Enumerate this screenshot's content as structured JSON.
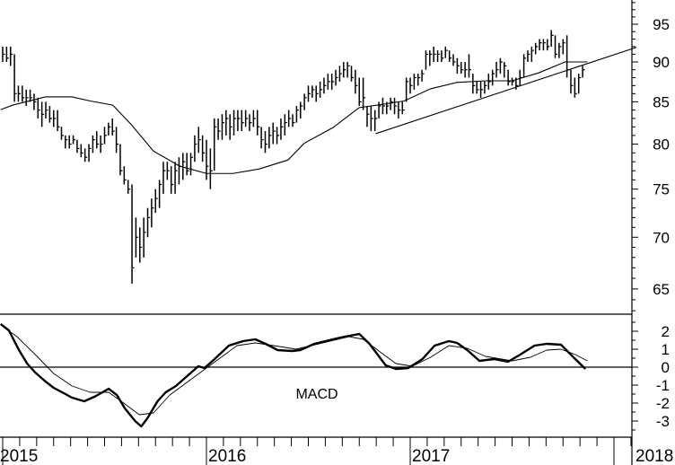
{
  "chart_data": [
    {
      "type": "ohlc",
      "price_axis": {
        "scale": "log",
        "ticks": [
          65,
          70,
          75,
          80,
          85,
          90,
          95
        ],
        "range": [
          62.7,
          98.4
        ],
        "position": "right"
      },
      "x_axis": {
        "type": "date",
        "range": [
          2014.99,
          2018.09
        ],
        "year_labels": [
          "2015",
          "2016",
          "2017",
          "2018"
        ]
      },
      "bar_interval": "weekly",
      "first_bar_year": 2015.0,
      "bars_hlc": [
        [
          92,
          90,
          91
        ],
        [
          92,
          90,
          90.5
        ],
        [
          92,
          89.5,
          91
        ],
        [
          91,
          85,
          86
        ],
        [
          87,
          85,
          86
        ],
        [
          87,
          85,
          85.5
        ],
        [
          86.5,
          84.5,
          85.5
        ],
        [
          86.5,
          85,
          85.5
        ],
        [
          86,
          84,
          85
        ],
        [
          85.5,
          83,
          84
        ],
        [
          85,
          82,
          83.5
        ],
        [
          85,
          83,
          84
        ],
        [
          84.5,
          82.5,
          83
        ],
        [
          84,
          82,
          83
        ],
        [
          84,
          81.5,
          82
        ],
        [
          82,
          80.5,
          81
        ],
        [
          81,
          79.5,
          80.5
        ],
        [
          81,
          79.5,
          80
        ],
        [
          81,
          80,
          80.5
        ],
        [
          80.5,
          79,
          79.5
        ],
        [
          80,
          78.5,
          79
        ],
        [
          79.5,
          78,
          78.5
        ],
        [
          80,
          78,
          79.5
        ],
        [
          81,
          79,
          80.5
        ],
        [
          81.5,
          79.5,
          80
        ],
        [
          81,
          79,
          80
        ],
        [
          82,
          80,
          81
        ],
        [
          82.5,
          81,
          82
        ],
        [
          83,
          81,
          81.5
        ],
        [
          82,
          79,
          80
        ],
        [
          80,
          76.5,
          77
        ],
        [
          77.5,
          75.5,
          76
        ],
        [
          76,
          74.5,
          75
        ],
        [
          75.5,
          65.5,
          67
        ],
        [
          72,
          68,
          70
        ],
        [
          71,
          67.5,
          69
        ],
        [
          72,
          68,
          70.5
        ],
        [
          73,
          70,
          72
        ],
        [
          74,
          71,
          73
        ],
        [
          75,
          72.5,
          74
        ],
        [
          76,
          73,
          75.5
        ],
        [
          78,
          74.5,
          77
        ],
        [
          78,
          76,
          77
        ],
        [
          77.5,
          74.5,
          75.5
        ],
        [
          78,
          74.5,
          77
        ],
        [
          78.5,
          75.5,
          77.5
        ],
        [
          79,
          76,
          78
        ],
        [
          79,
          76.5,
          77
        ],
        [
          79,
          76.5,
          78.5
        ],
        [
          81,
          78,
          80
        ],
        [
          82,
          79,
          80.5
        ],
        [
          81,
          78,
          79
        ],
        [
          80.5,
          76,
          77.5
        ],
        [
          79.5,
          75,
          77
        ],
        [
          83,
          77,
          82
        ],
        [
          83,
          80.5,
          81.5
        ],
        [
          83.5,
          80.5,
          82.5
        ],
        [
          84,
          81,
          83
        ],
        [
          83.5,
          80.5,
          82
        ],
        [
          84,
          81,
          83
        ],
        [
          84,
          81.5,
          83
        ],
        [
          84,
          81.5,
          82.5
        ],
        [
          84,
          82,
          83
        ],
        [
          83.5,
          81.5,
          82.5
        ],
        [
          84,
          82,
          83
        ],
        [
          84,
          81,
          82
        ],
        [
          82,
          79.5,
          80.5
        ],
        [
          81.5,
          79,
          80
        ],
        [
          82,
          79.5,
          81
        ],
        [
          82.5,
          80,
          81.5
        ],
        [
          82,
          80,
          81
        ],
        [
          83,
          80.5,
          82
        ],
        [
          83.5,
          81,
          82.5
        ],
        [
          84,
          82,
          83
        ],
        [
          83.5,
          82,
          82.5
        ],
        [
          84.5,
          82.5,
          84
        ],
        [
          85,
          83,
          84.5
        ],
        [
          86,
          84,
          85.5
        ],
        [
          87,
          85,
          86
        ],
        [
          87,
          85.5,
          86.5
        ],
        [
          87,
          85,
          86
        ],
        [
          87.5,
          85.5,
          86.5
        ],
        [
          88,
          86,
          87
        ],
        [
          88.5,
          86.5,
          87.5
        ],
        [
          88.5,
          86.5,
          87.5
        ],
        [
          89,
          87,
          88
        ],
        [
          89.5,
          87.5,
          88.5
        ],
        [
          90,
          88,
          89
        ],
        [
          90,
          88,
          89.5
        ],
        [
          89.5,
          87.5,
          88
        ],
        [
          89,
          86,
          87
        ],
        [
          88,
          84.5,
          85
        ],
        [
          88,
          84,
          85.5
        ],
        [
          84.5,
          82,
          83.5
        ],
        [
          84.5,
          81.5,
          83
        ],
        [
          84,
          81.5,
          83
        ],
        [
          85,
          83,
          84.5
        ],
        [
          85.5,
          83.5,
          84.5
        ],
        [
          85,
          83.5,
          84.5
        ],
        [
          85.5,
          84,
          85
        ],
        [
          85.5,
          83.5,
          84.5
        ],
        [
          85,
          83,
          84
        ],
        [
          85,
          83.5,
          84
        ],
        [
          88,
          85,
          87.5
        ],
        [
          88,
          86,
          87
        ],
        [
          88.5,
          86.5,
          88
        ],
        [
          88.5,
          87,
          88
        ],
        [
          89,
          87.5,
          88.5
        ],
        [
          91.5,
          89,
          91
        ],
        [
          91.5,
          89.5,
          91
        ],
        [
          92,
          90,
          91
        ],
        [
          91.5,
          90,
          91
        ],
        [
          91.5,
          90,
          90.5
        ],
        [
          92,
          90.5,
          91.5
        ],
        [
          91.5,
          90,
          90.5
        ],
        [
          91,
          89.5,
          90
        ],
        [
          90.5,
          88.5,
          89.5
        ],
        [
          90,
          88.5,
          89
        ],
        [
          90,
          88,
          89
        ],
        [
          91,
          88,
          89
        ],
        [
          88.5,
          86,
          87
        ],
        [
          87.5,
          86,
          86.5
        ],
        [
          87.5,
          85.5,
          86.5
        ],
        [
          87.5,
          86,
          87
        ],
        [
          88.5,
          86.5,
          87.5
        ],
        [
          89,
          87,
          88.5
        ],
        [
          90,
          88,
          89
        ],
        [
          90.5,
          88.5,
          90
        ],
        [
          90,
          88,
          89.5
        ],
        [
          89,
          87,
          87.5
        ],
        [
          88,
          87,
          87.5
        ],
        [
          88,
          86.5,
          87
        ],
        [
          89,
          87,
          88
        ],
        [
          91,
          88,
          90.5
        ],
        [
          91.5,
          90,
          91
        ],
        [
          92,
          90,
          91.5
        ],
        [
          92.5,
          91,
          92
        ],
        [
          93,
          91.5,
          92.5
        ],
        [
          93,
          91.5,
          92.5
        ],
        [
          93,
          91.5,
          92
        ],
        [
          94.2,
          92,
          93.5
        ],
        [
          93.5,
          90.5,
          91
        ],
        [
          92.5,
          90.5,
          92
        ],
        [
          93,
          91,
          92.5
        ],
        [
          93.5,
          88,
          89
        ],
        [
          89,
          86,
          87
        ],
        [
          88,
          85.5,
          86
        ],
        [
          88.5,
          86,
          88
        ],
        [
          89.5,
          88,
          89
        ]
      ],
      "moving_average": [
        [
          2014.99,
          84.05
        ],
        [
          2015.05,
          84.6
        ],
        [
          2015.21,
          85.6
        ],
        [
          2015.34,
          85.6
        ],
        [
          2015.43,
          85.1
        ],
        [
          2015.54,
          84.6
        ],
        [
          2015.63,
          82.3
        ],
        [
          2015.74,
          79.2
        ],
        [
          2015.87,
          77.5
        ],
        [
          2016.0,
          76.7
        ],
        [
          2016.13,
          76.7
        ],
        [
          2016.26,
          77.2
        ],
        [
          2016.4,
          78.2
        ],
        [
          2016.48,
          80.1
        ],
        [
          2016.62,
          81.9
        ],
        [
          2016.75,
          84.3
        ],
        [
          2016.84,
          84.6
        ],
        [
          2016.97,
          85.1
        ],
        [
          2017.1,
          86.6
        ],
        [
          2017.23,
          87.4
        ],
        [
          2017.37,
          87.6
        ],
        [
          2017.5,
          87.6
        ],
        [
          2017.63,
          88.6
        ],
        [
          2017.76,
          90.0
        ],
        [
          2017.87,
          90.0
        ]
      ],
      "trendline": [
        [
          2016.83,
          81.2
        ],
        [
          2018.11,
          91.9
        ]
      ]
    },
    {
      "type": "line",
      "title": "MACD",
      "y_axis": {
        "ticks": [
          -3,
          -2,
          -1,
          0,
          1,
          2
        ],
        "range": [
          -3.9,
          2.95
        ],
        "position": "right"
      },
      "zero_line": true,
      "series": [
        {
          "style": "thick",
          "points": [
            [
              2014.99,
              2.4
            ],
            [
              2015.03,
              2.05
            ],
            [
              2015.08,
              0.95
            ],
            [
              2015.12,
              0.2
            ],
            [
              2015.16,
              -0.3
            ],
            [
              2015.21,
              -0.8
            ],
            [
              2015.25,
              -1.15
            ],
            [
              2015.3,
              -1.45
            ],
            [
              2015.34,
              -1.7
            ],
            [
              2015.4,
              -1.9
            ],
            [
              2015.45,
              -1.65
            ],
            [
              2015.49,
              -1.4
            ],
            [
              2015.52,
              -1.2
            ],
            [
              2015.56,
              -1.55
            ],
            [
              2015.6,
              -2.3
            ],
            [
              2015.65,
              -3.0
            ],
            [
              2015.68,
              -3.3
            ],
            [
              2015.71,
              -2.85
            ],
            [
              2015.76,
              -1.9
            ],
            [
              2015.8,
              -1.4
            ],
            [
              2015.85,
              -1.05
            ],
            [
              2015.91,
              -0.45
            ],
            [
              2015.96,
              0.05
            ],
            [
              2015.99,
              -0.05
            ],
            [
              2016.04,
              0.45
            ],
            [
              2016.11,
              1.2
            ],
            [
              2016.18,
              1.45
            ],
            [
              2016.24,
              1.55
            ],
            [
              2016.29,
              1.3
            ],
            [
              2016.35,
              0.95
            ],
            [
              2016.42,
              0.9
            ],
            [
              2016.46,
              0.95
            ],
            [
              2016.53,
              1.3
            ],
            [
              2016.62,
              1.55
            ],
            [
              2016.68,
              1.7
            ],
            [
              2016.75,
              1.85
            ],
            [
              2016.8,
              1.3
            ],
            [
              2016.84,
              0.7
            ],
            [
              2016.88,
              0.1
            ],
            [
              2016.93,
              -0.1
            ],
            [
              2016.99,
              -0.05
            ],
            [
              2017.06,
              0.45
            ],
            [
              2017.12,
              1.2
            ],
            [
              2017.19,
              1.45
            ],
            [
              2017.23,
              1.35
            ],
            [
              2017.28,
              0.95
            ],
            [
              2017.34,
              0.35
            ],
            [
              2017.41,
              0.45
            ],
            [
              2017.48,
              0.3
            ],
            [
              2017.54,
              0.7
            ],
            [
              2017.61,
              1.2
            ],
            [
              2017.67,
              1.3
            ],
            [
              2017.74,
              1.25
            ],
            [
              2017.81,
              0.45
            ],
            [
              2017.86,
              -0.1
            ]
          ]
        },
        {
          "style": "thin",
          "points": [
            [
              2014.99,
              2.35
            ],
            [
              2015.07,
              1.7
            ],
            [
              2015.16,
              0.7
            ],
            [
              2015.25,
              -0.35
            ],
            [
              2015.34,
              -1.05
            ],
            [
              2015.43,
              -1.4
            ],
            [
              2015.52,
              -1.4
            ],
            [
              2015.6,
              -2.05
            ],
            [
              2015.67,
              -2.65
            ],
            [
              2015.74,
              -2.55
            ],
            [
              2015.82,
              -1.55
            ],
            [
              2015.91,
              -0.8
            ],
            [
              2016.0,
              -0.05
            ],
            [
              2016.09,
              0.7
            ],
            [
              2016.15,
              1.2
            ],
            [
              2016.24,
              1.35
            ],
            [
              2016.33,
              1.2
            ],
            [
              2016.44,
              1.0
            ],
            [
              2016.57,
              1.35
            ],
            [
              2016.7,
              1.7
            ],
            [
              2016.77,
              1.55
            ],
            [
              2016.84,
              0.95
            ],
            [
              2016.93,
              0.2
            ],
            [
              2017.01,
              0.05
            ],
            [
              2017.1,
              0.55
            ],
            [
              2017.19,
              1.2
            ],
            [
              2017.28,
              1.05
            ],
            [
              2017.37,
              0.6
            ],
            [
              2017.5,
              0.35
            ],
            [
              2017.59,
              0.55
            ],
            [
              2017.67,
              0.95
            ],
            [
              2017.74,
              1.0
            ],
            [
              2017.81,
              0.7
            ],
            [
              2017.87,
              0.35
            ]
          ]
        }
      ]
    }
  ],
  "colors": {
    "line": "#000000",
    "background": "#ffffff"
  }
}
